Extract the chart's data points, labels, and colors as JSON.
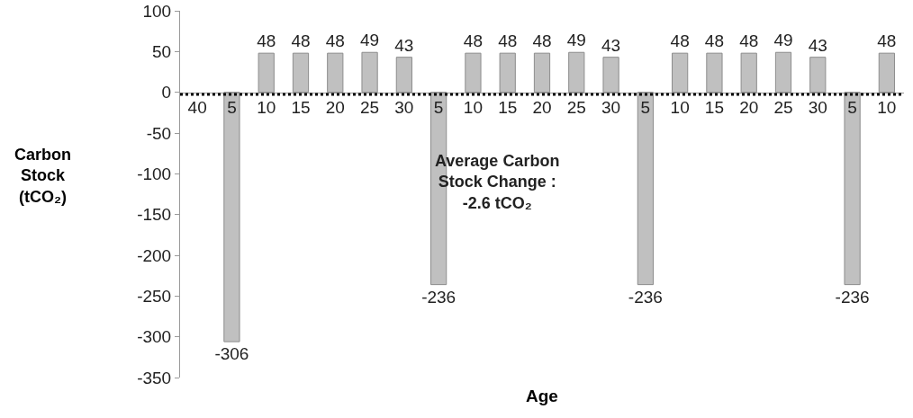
{
  "chart_data": {
    "type": "bar",
    "xlabel": "Age",
    "ylabel": "Carbon Stock (tCO₂)",
    "categories": [
      "40",
      "5",
      "10",
      "15",
      "20",
      "25",
      "30",
      "5",
      "10",
      "15",
      "20",
      "25",
      "30",
      "5",
      "10",
      "15",
      "20",
      "25",
      "30",
      "5",
      "10"
    ],
    "values": [
      null,
      -306,
      48,
      48,
      48,
      49,
      43,
      -236,
      48,
      48,
      48,
      49,
      43,
      -236,
      48,
      48,
      48,
      49,
      43,
      -236,
      48
    ],
    "color": "#c0c0c0",
    "data_labels": true,
    "ylim": [
      -350,
      100
    ],
    "yticks": [
      -350,
      -300,
      -250,
      -200,
      -150,
      -100,
      -50,
      0,
      50,
      100
    ],
    "grid": false,
    "ref_lines": [
      {
        "axis": "y",
        "value": -2.6,
        "label": "Average Carbon\nStock Change :\n-2.6 tCO₂",
        "color": "#000000",
        "line_style": "dotted"
      }
    ]
  }
}
